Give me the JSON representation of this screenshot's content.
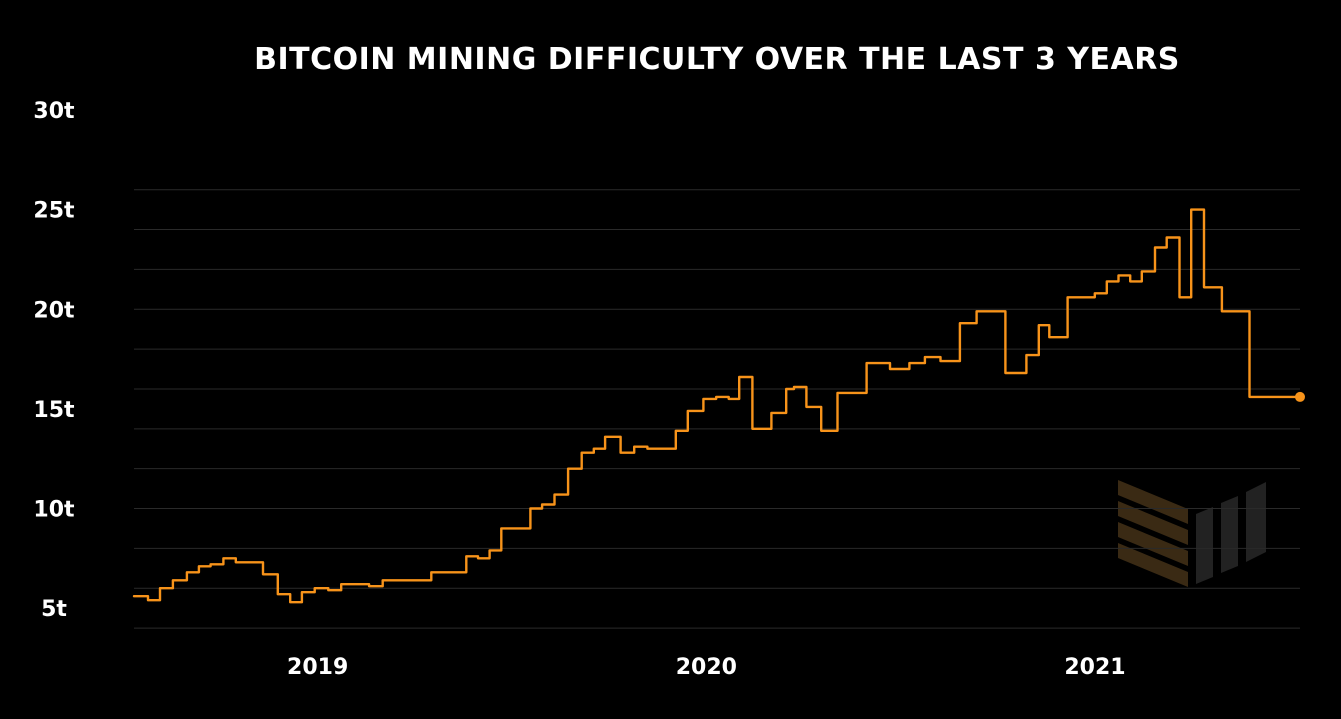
{
  "chart_data": {
    "type": "line",
    "title": "BITCOIN MINING DIFFICULTY OVER THE LAST 3 YEARS",
    "xlabel": "",
    "ylabel": "",
    "y_unit": "t",
    "ylim": [
      3,
      30
    ],
    "xlim": [
      2018.53,
      2021.53
    ],
    "y_ticks": [
      {
        "value": 5,
        "label": "5t"
      },
      {
        "value": 10,
        "label": "10t"
      },
      {
        "value": 15,
        "label": "15t"
      },
      {
        "value": 20,
        "label": "20t"
      },
      {
        "value": 25,
        "label": "25t"
      },
      {
        "value": 30,
        "label": "30t"
      }
    ],
    "x_ticks": [
      {
        "value": 2019,
        "label": "2019"
      },
      {
        "value": 2020,
        "label": "2020"
      },
      {
        "value": 2021,
        "label": "2021"
      }
    ],
    "gridlines": true,
    "legend": "none",
    "line_color": "#f7931a",
    "grid_color": "#2a2a2a",
    "watermark_color": "#3a2a14",
    "series": [
      {
        "name": "",
        "x": [
          2018.53,
          2018.566,
          2018.597,
          2018.63,
          2018.666,
          2018.697,
          2018.727,
          2018.76,
          2018.792,
          2018.827,
          2018.862,
          2018.9,
          2018.932,
          2018.962,
          2018.995,
          2019.03,
          2019.063,
          2019.097,
          2019.135,
          2019.17,
          2019.21,
          2019.25,
          2019.295,
          2019.34,
          2019.385,
          2019.415,
          2019.445,
          2019.475,
          2019.515,
          2019.55,
          2019.58,
          2019.612,
          2019.647,
          2019.682,
          2019.713,
          2019.742,
          2019.782,
          2019.817,
          2019.851,
          2019.89,
          2019.924,
          2019.955,
          2019.995,
          2020.028,
          2020.06,
          2020.087,
          2020.121,
          2020.17,
          2020.208,
          2020.228,
          2020.26,
          2020.298,
          2020.34,
          2020.36,
          2020.415,
          2020.475,
          2020.525,
          2020.565,
          2020.605,
          2020.655,
          2020.698,
          2020.772,
          2020.826,
          2020.858,
          2020.885,
          2020.932,
          2021.002,
          2021.033,
          2021.063,
          2021.093,
          2021.123,
          2021.157,
          2021.187,
          2021.22,
          2021.25,
          2021.283,
          2021.329,
          2021.355,
          2021.4,
          2021.445,
          2021.485,
          2021.525,
          2021.53
        ],
        "values": [
          5.6,
          5.4,
          6.0,
          6.4,
          6.8,
          7.1,
          7.2,
          7.5,
          7.3,
          7.3,
          6.7,
          5.7,
          5.3,
          5.8,
          6.0,
          5.9,
          6.2,
          6.2,
          6.1,
          6.4,
          6.4,
          6.4,
          6.8,
          6.8,
          7.6,
          7.5,
          7.9,
          9.0,
          9.0,
          10.0,
          10.2,
          10.7,
          12.0,
          12.8,
          13.0,
          13.6,
          12.8,
          13.1,
          13.0,
          13.0,
          13.9,
          14.9,
          15.5,
          15.6,
          15.5,
          16.6,
          14.0,
          14.8,
          16.0,
          16.1,
          15.1,
          13.9,
          15.8,
          15.8,
          17.3,
          17.0,
          17.3,
          17.6,
          17.4,
          19.3,
          19.9,
          16.8,
          17.7,
          19.2,
          18.6,
          20.6,
          20.8,
          21.4,
          21.7,
          21.4,
          21.9,
          23.1,
          23.6,
          20.6,
          25.0,
          21.1,
          19.9,
          19.9,
          15.6,
          15.6,
          15.6,
          15.6,
          15.6
        ]
      }
    ]
  }
}
